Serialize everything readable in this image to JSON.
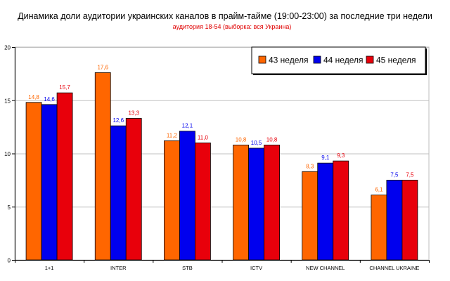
{
  "title": "Динамика доли аудитории украинских каналов в прайм-тайме (19:00-23:00) за последние три недели",
  "subtitle": "аудитория 18-54 (выборка: вся Украина)",
  "colors": {
    "43": "#ff6600",
    "44": "#0000ee",
    "45": "#e8000b"
  },
  "chart_data": {
    "type": "bar",
    "categories": [
      "1+1",
      "INTER",
      "STB",
      "ICTV",
      "NEW CHANNEL",
      "CHANNEL UKRAINE"
    ],
    "series": [
      {
        "name": "43 неделя",
        "values": [
          14.8,
          17.6,
          11.2,
          10.8,
          8.3,
          6.1
        ],
        "labels": [
          "14,8",
          "17,6",
          "11,2",
          "10,8",
          "8,3",
          "6,1"
        ],
        "color": "#ff6600"
      },
      {
        "name": "44 неделя",
        "values": [
          14.6,
          12.6,
          12.1,
          10.5,
          9.1,
          7.5
        ],
        "labels": [
          "14,6",
          "12,6",
          "12,1",
          "10,5",
          "9,1",
          "7,5"
        ],
        "color": "#0000ee"
      },
      {
        "name": "45 неделя",
        "values": [
          15.7,
          13.3,
          11.0,
          10.8,
          9.3,
          7.5
        ],
        "labels": [
          "15,7",
          "13,3",
          "11,0",
          "10,8",
          "9,3",
          "7,5"
        ],
        "color": "#e8000b"
      }
    ],
    "ylim": [
      0,
      20
    ],
    "yticks": [
      "0",
      "5",
      "10",
      "15",
      "20"
    ],
    "grid": true,
    "legend": "top-right"
  }
}
